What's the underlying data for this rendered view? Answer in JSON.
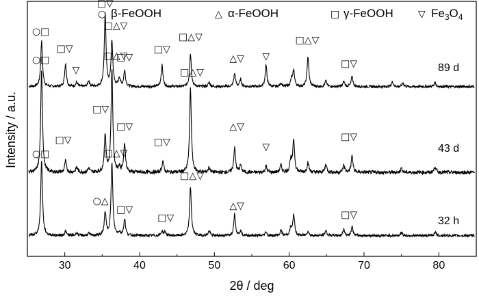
{
  "chart_data": {
    "type": "line",
    "title": "",
    "xlabel": "2θ / deg",
    "ylabel": "Intensity / a.u.",
    "xlim": [
      25,
      85
    ],
    "x_ticks": [
      30,
      40,
      50,
      60,
      70,
      80
    ],
    "x_tick_labels": [
      "30",
      "40",
      "50",
      "60",
      "70",
      "80"
    ],
    "y_ticks_shown": false,
    "legend": [
      {
        "symbol": "○",
        "label": "β-FeOOH"
      },
      {
        "symbol": "△",
        "label": "α-FeOOH"
      },
      {
        "symbol": "□",
        "label": "γ-FeOOH"
      },
      {
        "symbol": "▽",
        "label": "Fe3O4"
      }
    ],
    "series": [
      {
        "name": "89 d",
        "label": "89 d",
        "peaks": [
          {
            "x": 26.9,
            "h": 0.64
          },
          {
            "x": 30.1,
            "h": 0.32
          },
          {
            "x": 31.6,
            "h": 0.06
          },
          {
            "x": 33.2,
            "h": 0.08
          },
          {
            "x": 35.4,
            "h": 1.0
          },
          {
            "x": 36.3,
            "h": 0.63
          },
          {
            "x": 37.3,
            "h": 0.12
          },
          {
            "x": 38.0,
            "h": 0.22
          },
          {
            "x": 43.0,
            "h": 0.3
          },
          {
            "x": 46.8,
            "h": 0.46
          },
          {
            "x": 49.3,
            "h": 0.06
          },
          {
            "x": 52.7,
            "h": 0.18
          },
          {
            "x": 53.5,
            "h": 0.1
          },
          {
            "x": 56.9,
            "h": 0.3
          },
          {
            "x": 58.9,
            "h": 0.05
          },
          {
            "x": 60.3,
            "h": 0.1
          },
          {
            "x": 60.6,
            "h": 0.22
          },
          {
            "x": 62.5,
            "h": 0.42
          },
          {
            "x": 64.9,
            "h": 0.08
          },
          {
            "x": 67.3,
            "h": 0.07
          },
          {
            "x": 68.4,
            "h": 0.14
          },
          {
            "x": 73.8,
            "h": 0.07
          },
          {
            "x": 75.2,
            "h": 0.05
          },
          {
            "x": 79.5,
            "h": 0.06
          }
        ],
        "annotations": [
          {
            "x": 26.8,
            "text": "○□",
            "h": 0.74
          },
          {
            "x": 30.0,
            "text": "□▽",
            "h": 0.5
          },
          {
            "x": 31.5,
            "text": "▽",
            "h": 0.2
          },
          {
            "x": 35.4,
            "text": "□▽",
            "h": 1.13
          },
          {
            "x": 36.8,
            "text": "□△▽",
            "h": 0.82
          },
          {
            "x": 38.0,
            "text": "□▽",
            "h": 0.38
          },
          {
            "x": 43.0,
            "text": "□▽",
            "h": 0.49
          },
          {
            "x": 46.8,
            "text": "□△▽",
            "h": 0.66
          },
          {
            "x": 53.0,
            "text": "△▽",
            "h": 0.36
          },
          {
            "x": 56.9,
            "text": "▽",
            "h": 0.39
          },
          {
            "x": 62.4,
            "text": "□△▽",
            "h": 0.62
          },
          {
            "x": 68.0,
            "text": "□▽",
            "h": 0.29
          }
        ]
      },
      {
        "name": "43 d",
        "label": "43 d",
        "peaks": [
          {
            "x": 26.9,
            "h": 1.0
          },
          {
            "x": 30.1,
            "h": 0.11
          },
          {
            "x": 31.6,
            "h": 0.05
          },
          {
            "x": 33.2,
            "h": 0.04
          },
          {
            "x": 35.4,
            "h": 0.36
          },
          {
            "x": 36.3,
            "h": 1.0
          },
          {
            "x": 37.3,
            "h": 0.05
          },
          {
            "x": 38.0,
            "h": 0.28
          },
          {
            "x": 43.1,
            "h": 0.11
          },
          {
            "x": 46.8,
            "h": 0.82
          },
          {
            "x": 49.3,
            "h": 0.05
          },
          {
            "x": 52.7,
            "h": 0.24
          },
          {
            "x": 53.5,
            "h": 0.07
          },
          {
            "x": 56.9,
            "h": 0.06
          },
          {
            "x": 58.9,
            "h": 0.07
          },
          {
            "x": 60.2,
            "h": 0.12
          },
          {
            "x": 60.6,
            "h": 0.32
          },
          {
            "x": 62.5,
            "h": 0.1
          },
          {
            "x": 64.9,
            "h": 0.08
          },
          {
            "x": 67.3,
            "h": 0.07
          },
          {
            "x": 68.4,
            "h": 0.16
          },
          {
            "x": 75.0,
            "h": 0.04
          },
          {
            "x": 79.5,
            "h": 0.06
          }
        ],
        "annotations": [
          {
            "x": 26.8,
            "text": "○□",
            "h": 1.08
          },
          {
            "x": 29.8,
            "text": "□▽",
            "h": 0.3
          },
          {
            "x": 34.8,
            "text": "□▽",
            "h": 0.6
          },
          {
            "x": 36.8,
            "text": "□△▽",
            "h": 1.12
          },
          {
            "x": 38.0,
            "text": "□▽",
            "h": 0.43
          },
          {
            "x": 43.0,
            "text": "□▽",
            "h": 0.28
          },
          {
            "x": 47.0,
            "text": "□△▽",
            "h": 0.96
          },
          {
            "x": 53.0,
            "text": "△▽",
            "h": 0.43
          },
          {
            "x": 56.9,
            "text": "▽",
            "h": 0.23
          },
          {
            "x": 68.0,
            "text": "□▽",
            "h": 0.33
          }
        ]
      },
      {
        "name": "32 h",
        "label": "32 h",
        "peaks": [
          {
            "x": 26.9,
            "h": 1.0
          },
          {
            "x": 30.1,
            "h": 0.06
          },
          {
            "x": 31.6,
            "h": 0.04
          },
          {
            "x": 33.2,
            "h": 0.03
          },
          {
            "x": 35.4,
            "h": 0.31
          },
          {
            "x": 36.3,
            "h": 0.97
          },
          {
            "x": 37.3,
            "h": 0.04
          },
          {
            "x": 38.0,
            "h": 0.22
          },
          {
            "x": 43.0,
            "h": 0.06
          },
          {
            "x": 43.4,
            "h": 0.05
          },
          {
            "x": 46.8,
            "h": 0.65
          },
          {
            "x": 49.3,
            "h": 0.06
          },
          {
            "x": 52.7,
            "h": 0.29
          },
          {
            "x": 53.5,
            "h": 0.06
          },
          {
            "x": 56.9,
            "h": 0.05
          },
          {
            "x": 58.9,
            "h": 0.07
          },
          {
            "x": 60.2,
            "h": 0.1
          },
          {
            "x": 60.6,
            "h": 0.28
          },
          {
            "x": 62.5,
            "h": 0.06
          },
          {
            "x": 64.9,
            "h": 0.07
          },
          {
            "x": 67.3,
            "h": 0.08
          },
          {
            "x": 68.4,
            "h": 0.12
          },
          {
            "x": 75.0,
            "h": 0.04
          },
          {
            "x": 79.5,
            "h": 0.05
          }
        ],
        "annotations": [
          {
            "x": 26.8,
            "text": "○□",
            "h": 1.06
          },
          {
            "x": 34.8,
            "text": "○△",
            "h": 0.43
          },
          {
            "x": 36.8,
            "text": "□△▽",
            "h": 1.07
          },
          {
            "x": 38.0,
            "text": "□▽",
            "h": 0.32
          },
          {
            "x": 43.5,
            "text": "□▽",
            "h": 0.21
          },
          {
            "x": 47.0,
            "text": "□△▽",
            "h": 0.77
          },
          {
            "x": 53.0,
            "text": "△▽",
            "h": 0.37
          },
          {
            "x": 68.0,
            "text": "□▽",
            "h": 0.25
          }
        ]
      }
    ]
  }
}
